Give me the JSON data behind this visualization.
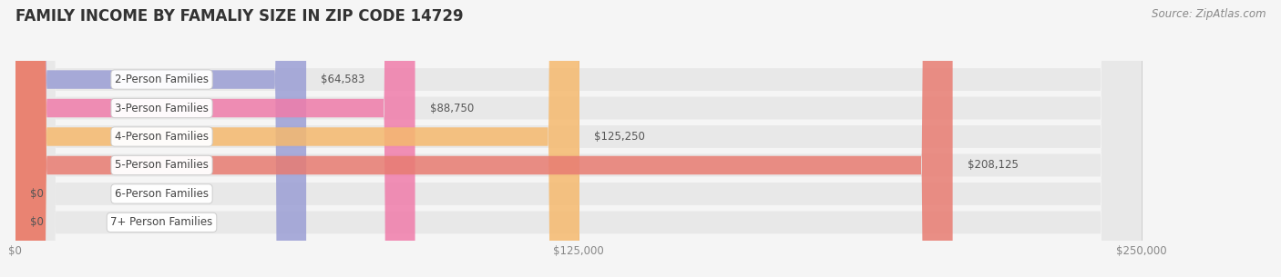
{
  "title": "FAMILY INCOME BY FAMALIY SIZE IN ZIP CODE 14729",
  "source": "Source: ZipAtlas.com",
  "categories": [
    "2-Person Families",
    "3-Person Families",
    "4-Person Families",
    "5-Person Families",
    "6-Person Families",
    "7+ Person Families"
  ],
  "values": [
    64583,
    88750,
    125250,
    208125,
    0,
    0
  ],
  "bar_colors": [
    "#9b9ed4",
    "#f07caa",
    "#f5b96e",
    "#e87c72",
    "#9ab8d8",
    "#c4a8d4"
  ],
  "xlim": [
    0,
    250000
  ],
  "xticks": [
    0,
    125000,
    250000
  ],
  "xtick_labels": [
    "$0",
    "$125,000",
    "$250,000"
  ],
  "value_labels": [
    "$64,583",
    "$88,750",
    "$125,250",
    "$208,125",
    "$0",
    "$0"
  ],
  "background_color": "#f5f5f5",
  "bar_bg_color": "#e8e8e8",
  "title_fontsize": 12,
  "label_fontsize": 8.5,
  "value_fontsize": 8.5,
  "source_fontsize": 8.5
}
